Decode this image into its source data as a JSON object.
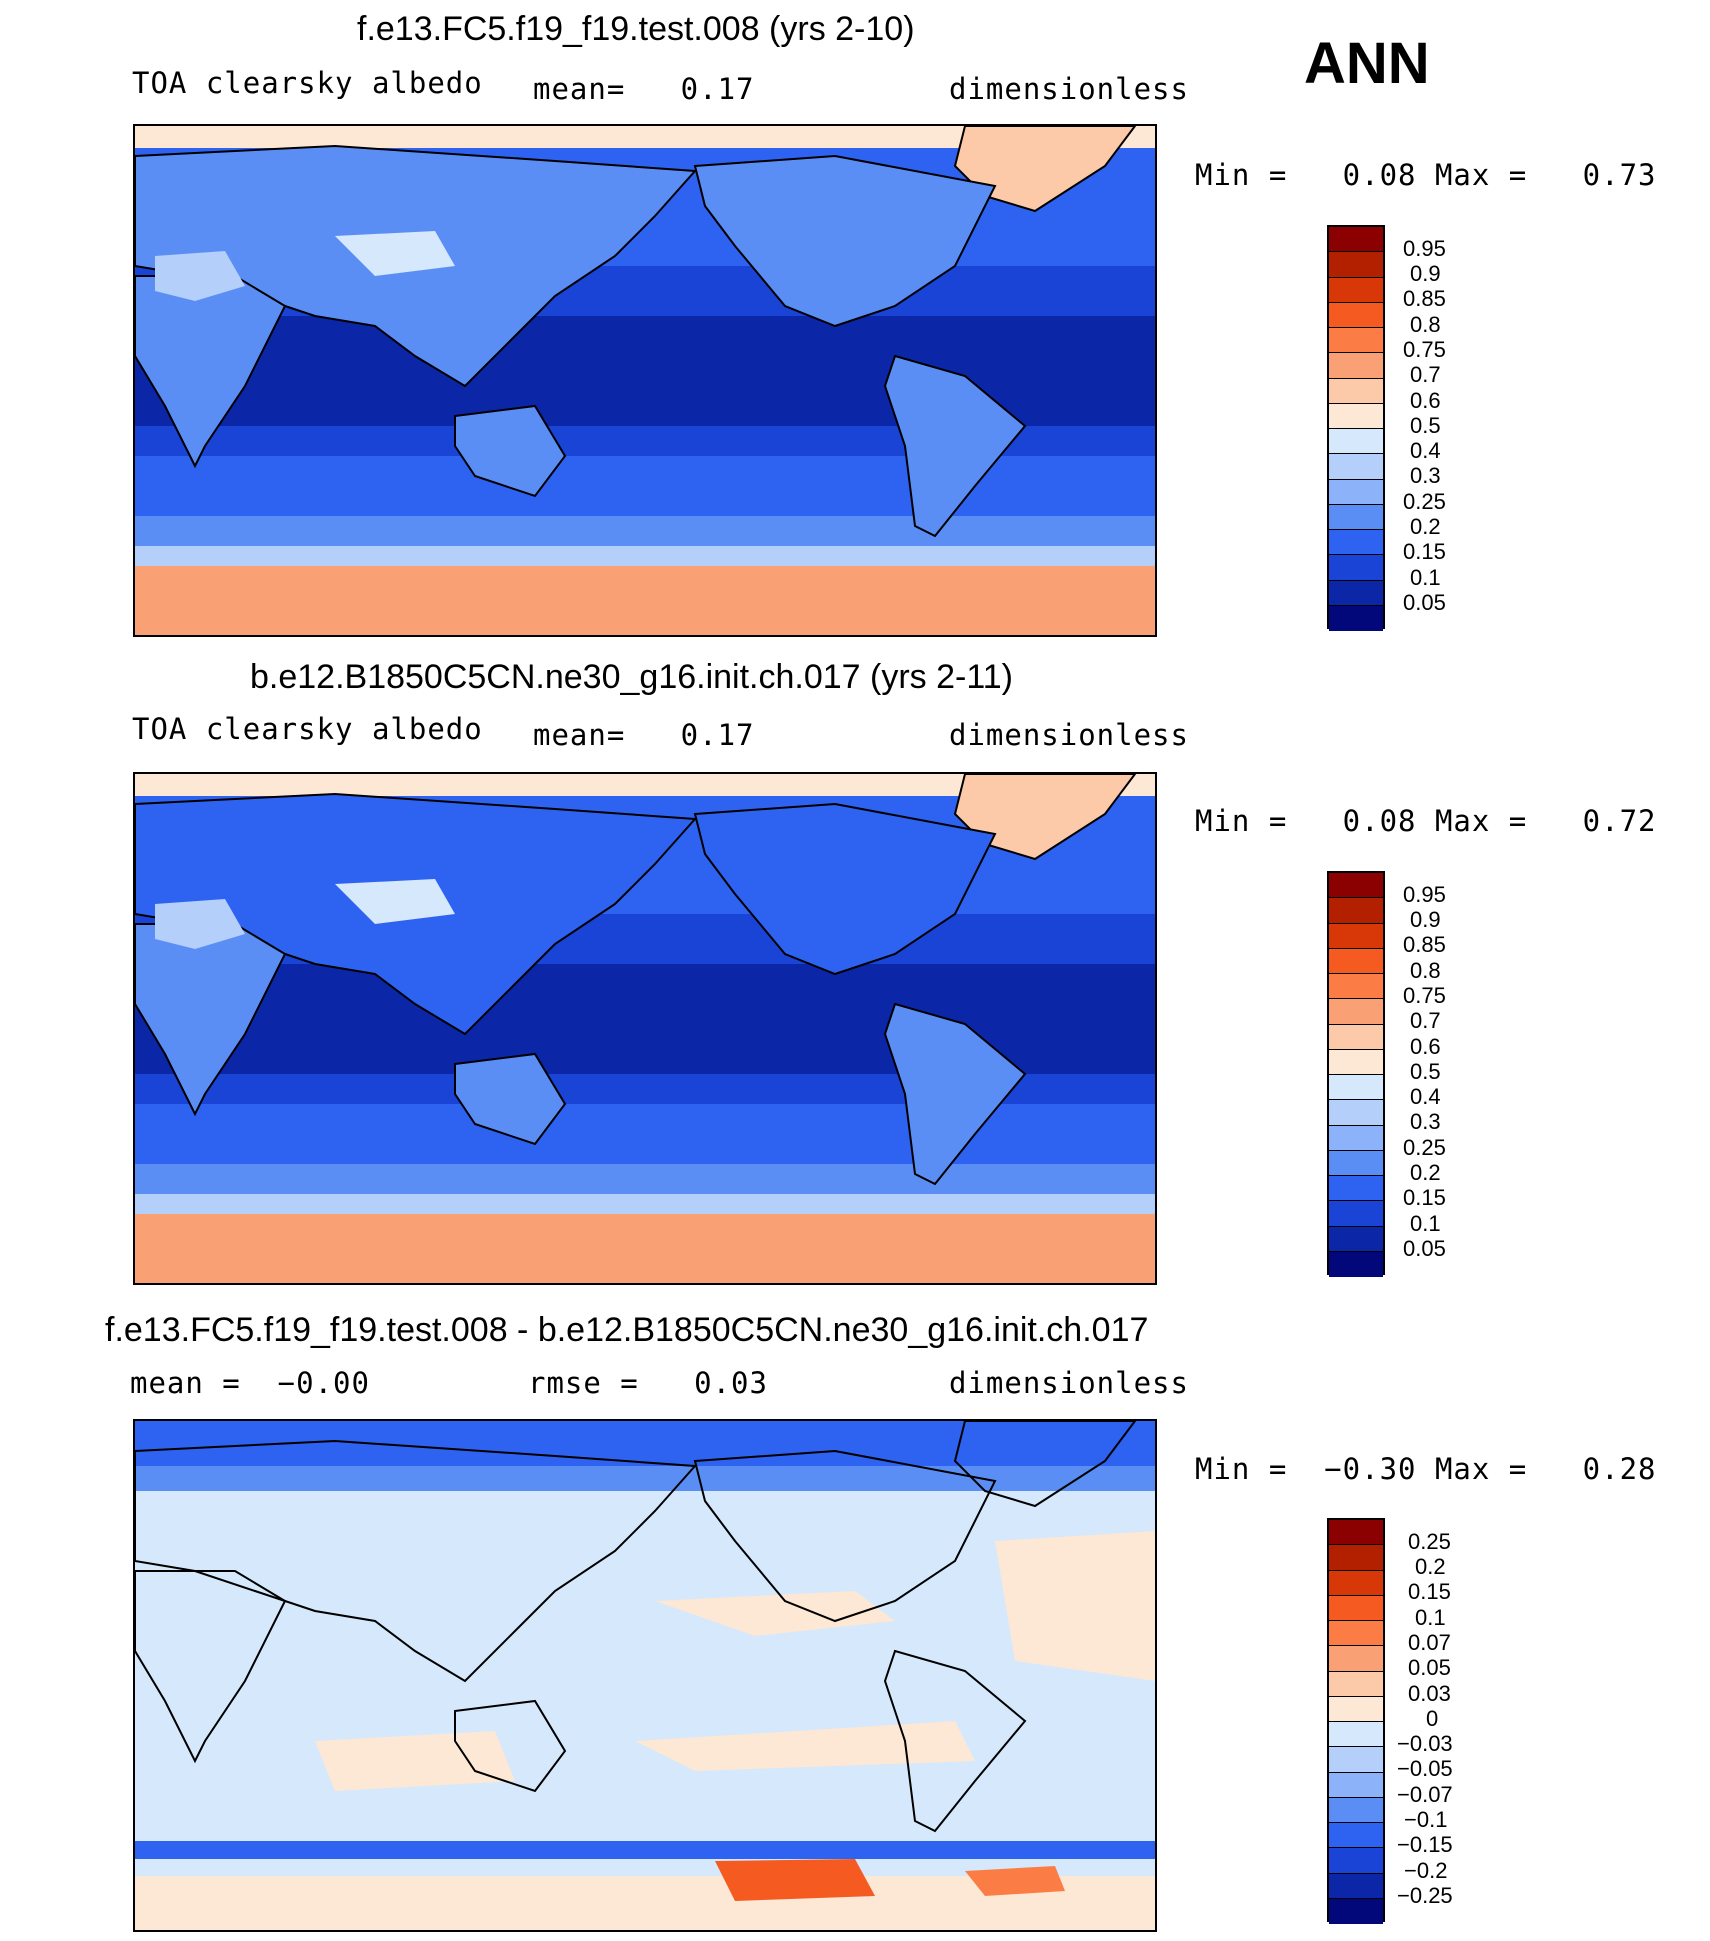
{
  "season": "ANN",
  "panels": [
    {
      "title": "f.e13.FC5.f19_f19.test.008 (yrs 2-10)",
      "left_label": "TOA clearsky albedo",
      "mid_label": "mean=   0.17",
      "right_label": "dimensionless",
      "minmax": "Min =   0.08 Max =   0.73",
      "kind": "field",
      "legend_labels": [
        "0.95",
        "0.9",
        "0.85",
        "0.8",
        "0.75",
        "0.7",
        "0.6",
        "0.5",
        "0.4",
        "0.3",
        "0.25",
        "0.2",
        "0.15",
        "0.1",
        "0.05"
      ]
    },
    {
      "title": "b.e12.B1850C5CN.ne30_g16.init.ch.017 (yrs 2-11)",
      "left_label": "TOA clearsky albedo",
      "mid_label": "mean=   0.17",
      "right_label": "dimensionless",
      "minmax": "Min =   0.08 Max =   0.72",
      "kind": "field",
      "legend_labels": [
        "0.95",
        "0.9",
        "0.85",
        "0.8",
        "0.75",
        "0.7",
        "0.6",
        "0.5",
        "0.4",
        "0.3",
        "0.25",
        "0.2",
        "0.15",
        "0.1",
        "0.05"
      ]
    },
    {
      "title": "f.e13.FC5.f19_f19.test.008 - b.e12.B1850C5CN.ne30_g16.init.ch.017",
      "left_label": "mean =  −0.00",
      "mid_label": "rmse =   0.03",
      "right_label": "dimensionless",
      "minmax": "Min =  −0.30 Max =   0.28",
      "kind": "diff",
      "legend_labels": [
        "0.25",
        "0.2",
        "0.15",
        "0.1",
        "0.07",
        "0.05",
        "0.03",
        "0",
        "−0.03",
        "−0.05",
        "−0.07",
        "−0.1",
        "−0.15",
        "−0.2",
        "−0.25"
      ]
    }
  ],
  "colors": {
    "field_scale": [
      "#8b0000",
      "#b22000",
      "#d83808",
      "#f55a20",
      "#fb7d45",
      "#f9a075",
      "#fcc9a9",
      "#fde7d5",
      "#d6e8fb",
      "#b3cffa",
      "#8cb3fa",
      "#5b8ef5",
      "#2e62f0",
      "#1a44d6",
      "#0c26a8",
      "#02087a"
    ],
    "diff_scale": [
      "#8b0000",
      "#b22000",
      "#d83808",
      "#f55a20",
      "#fb7d45",
      "#f9a075",
      "#fcc9a9",
      "#fde7d5",
      "#d6e8fb",
      "#b3cffa",
      "#8cb3fa",
      "#5b8ef5",
      "#2e62f0",
      "#1a44d6",
      "#0c26a8",
      "#02087a"
    ]
  }
}
